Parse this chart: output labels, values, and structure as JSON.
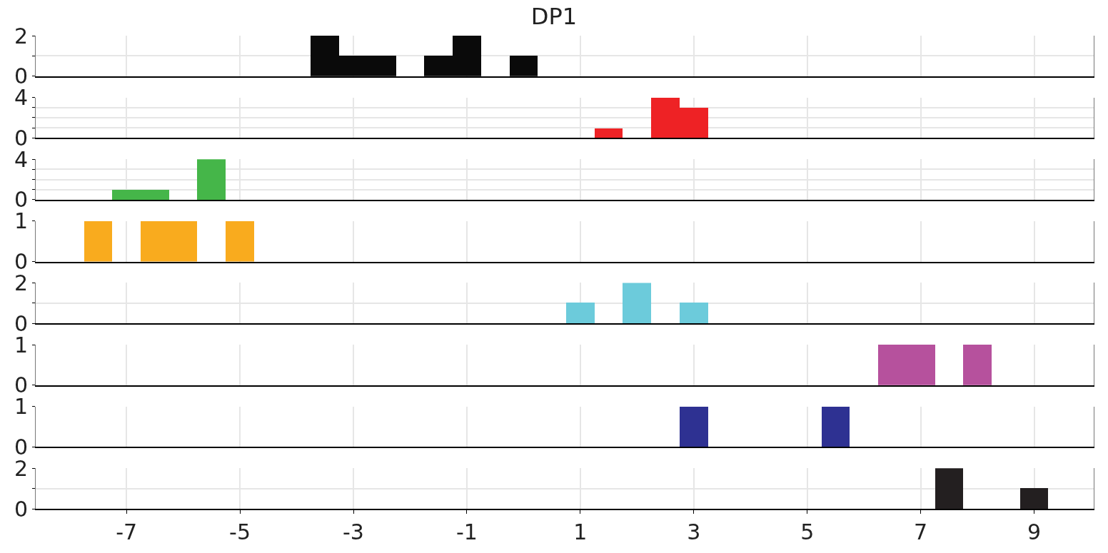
{
  "chart_data": [
    {
      "type": "histogram",
      "title": "DP1",
      "bins": [
        -7.75,
        -7.25,
        -6.75,
        -6.25,
        -5.75,
        -5.25,
        -4.75,
        -4.25,
        -3.75,
        -3.25,
        -2.75,
        -2.25,
        -1.75,
        -1.25,
        -0.75,
        -0.25,
        0.25,
        0.75,
        1.25,
        1.75,
        2.25,
        2.75,
        3.25,
        3.75,
        4.25,
        4.75,
        5.25,
        5.75,
        6.25,
        6.75,
        7.25,
        7.75,
        8.25,
        8.75,
        9.25
      ],
      "values": [
        0,
        0,
        0,
        0,
        0,
        0,
        0,
        0,
        2,
        1,
        1,
        0,
        1,
        2,
        0,
        1,
        0,
        0,
        0,
        0,
        0,
        0,
        0,
        0,
        0,
        0,
        0,
        0,
        0,
        0,
        0,
        0,
        0,
        0
      ],
      "color": "#0a0a0a",
      "xlim": [
        -8.6,
        10.05
      ],
      "xticks": [
        -7,
        -5,
        -3,
        -1,
        1,
        3,
        5,
        7,
        9
      ],
      "ylim": [
        0,
        2
      ],
      "yticks": [
        0,
        {
          "value": 1,
          "label": null
        },
        2
      ],
      "grid": true,
      "tick_labels": "y"
    },
    {
      "type": "histogram",
      "bins": [
        -7.75,
        -7.25,
        -6.75,
        -6.25,
        -5.75,
        -5.25,
        -4.75,
        -4.25,
        -3.75,
        -3.25,
        -2.75,
        -2.25,
        -1.75,
        -1.25,
        -0.75,
        -0.25,
        0.25,
        0.75,
        1.25,
        1.75,
        2.25,
        2.75,
        3.25,
        3.75,
        4.25,
        4.75,
        5.25,
        5.75,
        6.25,
        6.75,
        7.25,
        7.75,
        8.25,
        8.75,
        9.25
      ],
      "values": [
        0,
        0,
        0,
        0,
        0,
        0,
        0,
        0,
        0,
        0,
        0,
        0,
        0,
        0,
        0,
        0,
        0,
        0,
        1,
        0,
        4,
        3,
        0,
        0,
        0,
        0,
        0,
        0,
        0,
        0,
        0,
        0,
        0,
        0
      ],
      "color": "#ee2225",
      "xlim": [
        -8.6,
        10.05
      ],
      "xticks": [
        -7,
        -5,
        -3,
        -1,
        1,
        3,
        5,
        7,
        9
      ],
      "ylim": [
        0,
        4
      ],
      "yticks": [
        0,
        {
          "value": 1,
          "label": null
        },
        {
          "value": 2,
          "label": null
        },
        {
          "value": 3,
          "label": null
        },
        4
      ],
      "grid": true,
      "tick_labels": "y"
    },
    {
      "type": "histogram",
      "bins": [
        -7.75,
        -7.25,
        -6.75,
        -6.25,
        -5.75,
        -5.25,
        -4.75,
        -4.25,
        -3.75,
        -3.25,
        -2.75,
        -2.25,
        -1.75,
        -1.25,
        -0.75,
        -0.25,
        0.25,
        0.75,
        1.25,
        1.75,
        2.25,
        2.75,
        3.25,
        3.75,
        4.25,
        4.75,
        5.25,
        5.75,
        6.25,
        6.75,
        7.25,
        7.75,
        8.25,
        8.75,
        9.25
      ],
      "values": [
        0,
        1,
        1,
        0,
        4,
        0,
        0,
        0,
        0,
        0,
        0,
        0,
        0,
        0,
        0,
        0,
        0,
        0,
        0,
        0,
        0,
        0,
        0,
        0,
        0,
        0,
        0,
        0,
        0,
        0,
        0,
        0,
        0,
        0
      ],
      "color": "#45b649",
      "xlim": [
        -8.6,
        10.05
      ],
      "xticks": [
        -7,
        -5,
        -3,
        -1,
        1,
        3,
        5,
        7,
        9
      ],
      "ylim": [
        0,
        4
      ],
      "yticks": [
        0,
        {
          "value": 1,
          "label": null
        },
        {
          "value": 2,
          "label": null
        },
        {
          "value": 3,
          "label": null
        },
        4
      ],
      "grid": true,
      "tick_labels": "y"
    },
    {
      "type": "histogram",
      "bins": [
        -7.75,
        -7.25,
        -6.75,
        -6.25,
        -5.75,
        -5.25,
        -4.75,
        -4.25,
        -3.75,
        -3.25,
        -2.75,
        -2.25,
        -1.75,
        -1.25,
        -0.75,
        -0.25,
        0.25,
        0.75,
        1.25,
        1.75,
        2.25,
        2.75,
        3.25,
        3.75,
        4.25,
        4.75,
        5.25,
        5.75,
        6.25,
        6.75,
        7.25,
        7.75,
        8.25,
        8.75,
        9.25
      ],
      "values": [
        1,
        0,
        1,
        1,
        0,
        1,
        0,
        0,
        0,
        0,
        0,
        0,
        0,
        0,
        0,
        0,
        0,
        0,
        0,
        0,
        0,
        0,
        0,
        0,
        0,
        0,
        0,
        0,
        0,
        0,
        0,
        0,
        0,
        0
      ],
      "color": "#f9ab1e",
      "xlim": [
        -8.6,
        10.05
      ],
      "xticks": [
        -7,
        -5,
        -3,
        -1,
        1,
        3,
        5,
        7,
        9
      ],
      "ylim": [
        0,
        1
      ],
      "yticks": [
        0,
        1
      ],
      "grid": true,
      "tick_labels": "y"
    },
    {
      "type": "histogram",
      "bins": [
        -7.75,
        -7.25,
        -6.75,
        -6.25,
        -5.75,
        -5.25,
        -4.75,
        -4.25,
        -3.75,
        -3.25,
        -2.75,
        -2.25,
        -1.75,
        -1.25,
        -0.75,
        -0.25,
        0.25,
        0.75,
        1.25,
        1.75,
        2.25,
        2.75,
        3.25,
        3.75,
        4.25,
        4.75,
        5.25,
        5.75,
        6.25,
        6.75,
        7.25,
        7.75,
        8.25,
        8.75,
        9.25
      ],
      "values": [
        0,
        0,
        0,
        0,
        0,
        0,
        0,
        0,
        0,
        0,
        0,
        0,
        0,
        0,
        0,
        0,
        0,
        1,
        0,
        2,
        0,
        1,
        0,
        0,
        0,
        0,
        0,
        0,
        0,
        0,
        0,
        0,
        0,
        0
      ],
      "color": "#6ccbdb",
      "xlim": [
        -8.6,
        10.05
      ],
      "xticks": [
        -7,
        -5,
        -3,
        -1,
        1,
        3,
        5,
        7,
        9
      ],
      "ylim": [
        0,
        2
      ],
      "yticks": [
        0,
        {
          "value": 1,
          "label": null
        },
        2
      ],
      "grid": true,
      "tick_labels": "y"
    },
    {
      "type": "histogram",
      "bins": [
        -7.75,
        -7.25,
        -6.75,
        -6.25,
        -5.75,
        -5.25,
        -4.75,
        -4.25,
        -3.75,
        -3.25,
        -2.75,
        -2.25,
        -1.75,
        -1.25,
        -0.75,
        -0.25,
        0.25,
        0.75,
        1.25,
        1.75,
        2.25,
        2.75,
        3.25,
        3.75,
        4.25,
        4.75,
        5.25,
        5.75,
        6.25,
        6.75,
        7.25,
        7.75,
        8.25,
        8.75,
        9.25
      ],
      "values": [
        0,
        0,
        0,
        0,
        0,
        0,
        0,
        0,
        0,
        0,
        0,
        0,
        0,
        0,
        0,
        0,
        0,
        0,
        0,
        0,
        0,
        0,
        0,
        0,
        0,
        0,
        0,
        0,
        1,
        1,
        0,
        1,
        0,
        0
      ],
      "color": "#b6519d",
      "xlim": [
        -8.6,
        10.05
      ],
      "xticks": [
        -7,
        -5,
        -3,
        -1,
        1,
        3,
        5,
        7,
        9
      ],
      "ylim": [
        0,
        1
      ],
      "yticks": [
        0,
        1
      ],
      "grid": true,
      "tick_labels": "y"
    },
    {
      "type": "histogram",
      "bins": [
        -7.75,
        -7.25,
        -6.75,
        -6.25,
        -5.75,
        -5.25,
        -4.75,
        -4.25,
        -3.75,
        -3.25,
        -2.75,
        -2.25,
        -1.75,
        -1.25,
        -0.75,
        -0.25,
        0.25,
        0.75,
        1.25,
        1.75,
        2.25,
        2.75,
        3.25,
        3.75,
        4.25,
        4.75,
        5.25,
        5.75,
        6.25,
        6.75,
        7.25,
        7.75,
        8.25,
        8.75,
        9.25
      ],
      "values": [
        0,
        0,
        0,
        0,
        0,
        0,
        0,
        0,
        0,
        0,
        0,
        0,
        0,
        0,
        0,
        0,
        0,
        0,
        0,
        0,
        0,
        1,
        0,
        0,
        0,
        0,
        1,
        0,
        0,
        0,
        0,
        0,
        0,
        0
      ],
      "color": "#2e3192",
      "xlim": [
        -8.6,
        10.05
      ],
      "xticks": [
        -7,
        -5,
        -3,
        -1,
        1,
        3,
        5,
        7,
        9
      ],
      "ylim": [
        0,
        1
      ],
      "yticks": [
        0,
        1
      ],
      "grid": true,
      "tick_labels": "y"
    },
    {
      "type": "histogram",
      "bins": [
        -7.75,
        -7.25,
        -6.75,
        -6.25,
        -5.75,
        -5.25,
        -4.75,
        -4.25,
        -3.75,
        -3.25,
        -2.75,
        -2.25,
        -1.75,
        -1.25,
        -0.75,
        -0.25,
        0.25,
        0.75,
        1.25,
        1.75,
        2.25,
        2.75,
        3.25,
        3.75,
        4.25,
        4.75,
        5.25,
        5.75,
        6.25,
        6.75,
        7.25,
        7.75,
        8.25,
        8.75,
        9.25
      ],
      "values": [
        0,
        0,
        0,
        0,
        0,
        0,
        0,
        0,
        0,
        0,
        0,
        0,
        0,
        0,
        0,
        0,
        0,
        0,
        0,
        0,
        0,
        0,
        0,
        0,
        0,
        0,
        0,
        0,
        0,
        0,
        2,
        0,
        0,
        1
      ],
      "color": "#231f20",
      "xlim": [
        -8.6,
        10.05
      ],
      "xticks": [
        -7,
        -5,
        -3,
        -1,
        1,
        3,
        5,
        7,
        9
      ],
      "ylim": [
        0,
        2
      ],
      "yticks": [
        0,
        {
          "value": 1,
          "label": null
        },
        2
      ],
      "grid": true
    }
  ]
}
